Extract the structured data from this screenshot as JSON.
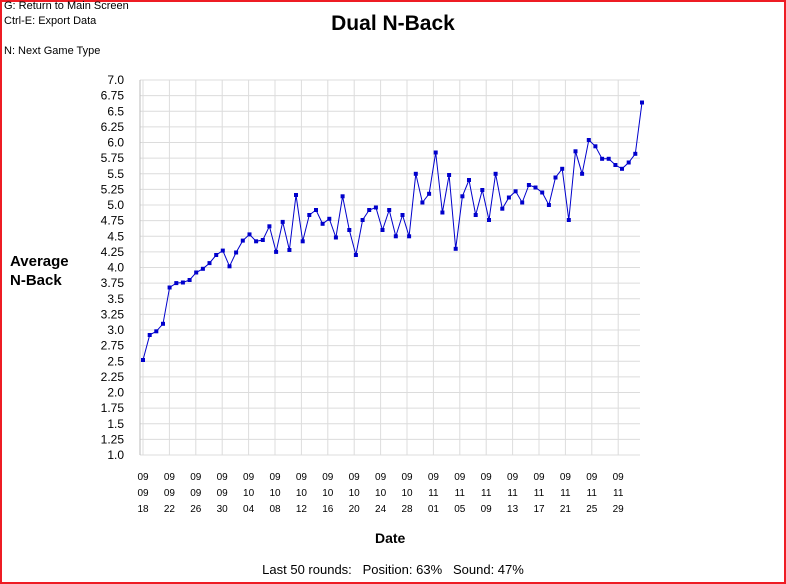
{
  "shortcuts": [
    "G: Return to Main Screen",
    "Ctrl-E: Export Data",
    "",
    "N: Next Game Type"
  ],
  "footer": {
    "rounds_label": "Last 50 rounds:",
    "position_label": "Position: 63%",
    "sound_label": "Sound: 47%"
  },
  "colors": {
    "series": "#0000cc",
    "frame": "#ee1c24",
    "grid": "#dcdcdc"
  },
  "chart_data": {
    "type": "line",
    "title": "Dual N-Back",
    "xlabel": "Date",
    "ylabel_lines": [
      "Average",
      "N-Back"
    ],
    "ylim": [
      1.0,
      7.0
    ],
    "y_ticks": [
      1.0,
      1.25,
      1.5,
      1.75,
      2.0,
      2.25,
      2.5,
      2.75,
      3.0,
      3.25,
      3.5,
      3.75,
      4.0,
      4.25,
      4.5,
      4.75,
      5.0,
      5.25,
      5.5,
      5.75,
      6.0,
      6.25,
      6.5,
      6.75,
      7.0
    ],
    "y_tick_labels": [
      "1.0",
      "1.25",
      "1.5",
      "1.75",
      "2.0",
      "2.25",
      "2.5",
      "2.75",
      "3.0",
      "3.25",
      "3.5",
      "3.75",
      "4.0",
      "4.25",
      "4.5",
      "4.75",
      "5.0",
      "5.25",
      "5.5",
      "5.75",
      "6.0",
      "6.25",
      "6.5",
      "6.75",
      "7.0"
    ],
    "x_tick_labels": [
      [
        "09",
        "09",
        "18"
      ],
      [
        "09",
        "09",
        "22"
      ],
      [
        "09",
        "09",
        "26"
      ],
      [
        "09",
        "09",
        "30"
      ],
      [
        "09",
        "10",
        "04"
      ],
      [
        "09",
        "10",
        "08"
      ],
      [
        "09",
        "10",
        "12"
      ],
      [
        "09",
        "10",
        "16"
      ],
      [
        "09",
        "10",
        "20"
      ],
      [
        "09",
        "10",
        "24"
      ],
      [
        "09",
        "10",
        "28"
      ],
      [
        "09",
        "11",
        "01"
      ],
      [
        "09",
        "11",
        "05"
      ],
      [
        "09",
        "11",
        "09"
      ],
      [
        "09",
        "11",
        "13"
      ],
      [
        "09",
        "11",
        "17"
      ],
      [
        "09",
        "11",
        "21"
      ],
      [
        "09",
        "11",
        "25"
      ],
      [
        "09",
        "11",
        "29"
      ]
    ],
    "grid": true,
    "legend": "none",
    "series": [
      {
        "values": [
          2.52,
          2.92,
          2.98,
          3.1,
          3.68,
          3.75,
          3.76,
          3.8,
          3.92,
          3.98,
          4.07,
          4.2,
          4.27,
          4.02,
          4.24,
          4.43,
          4.53,
          4.42,
          4.44,
          4.66,
          4.25,
          4.73,
          4.28,
          5.16,
          4.42,
          4.84,
          4.92,
          4.7,
          4.78,
          4.48,
          5.14,
          4.6,
          4.2,
          4.76,
          4.92,
          4.96,
          4.6,
          4.92,
          4.5,
          4.84,
          4.5,
          5.5,
          5.04,
          5.18,
          5.84,
          4.88,
          5.48,
          4.3,
          5.14,
          5.4,
          4.84,
          5.24,
          4.76,
          5.5,
          4.94,
          5.12,
          5.22,
          5.04,
          5.32,
          5.28,
          5.2,
          5.0,
          5.44,
          5.58,
          4.76,
          5.86,
          5.5,
          6.04,
          5.94,
          5.74,
          5.74,
          5.64,
          5.58,
          5.68,
          5.82,
          6.64
        ]
      }
    ]
  }
}
